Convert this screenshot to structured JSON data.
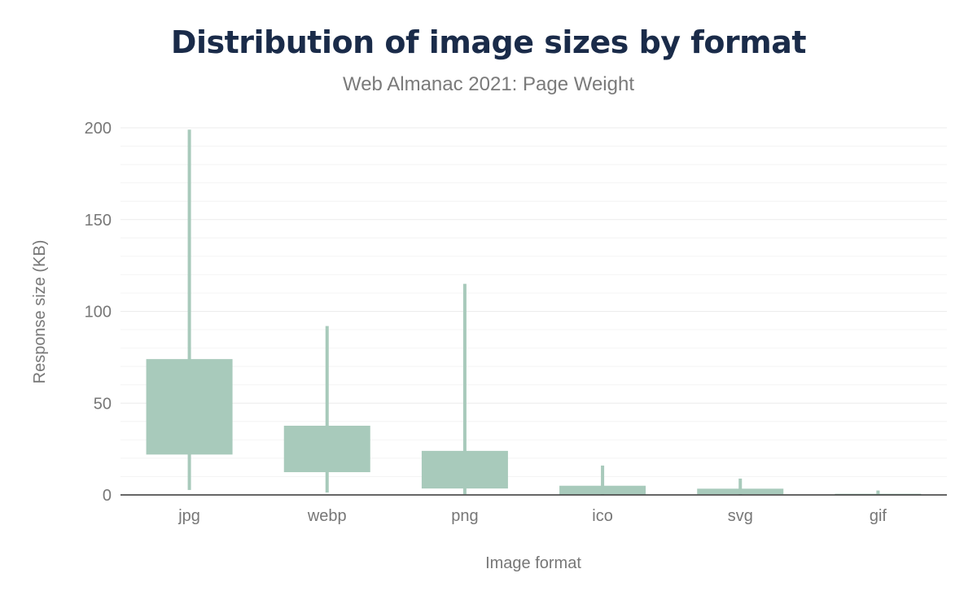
{
  "chart_data": {
    "type": "box",
    "title": "Distribution of image sizes by format",
    "subtitle": "Web Almanac 2021: Page Weight",
    "xlabel": "Image format",
    "ylabel": "Response size (KB)",
    "ylim": [
      0,
      200
    ],
    "yticks": [
      0,
      50,
      100,
      150,
      200
    ],
    "grid": true,
    "color": "#a8cabb",
    "categories": [
      "jpg",
      "webp",
      "png",
      "ico",
      "svg",
      "gif"
    ],
    "series": [
      {
        "low": [
          2.7,
          1.3,
          0.4,
          0.2,
          0.3,
          0.2
        ],
        "q1": [
          22,
          12.4,
          3.5,
          0.3,
          0.4,
          0.3
        ],
        "q3": [
          74,
          37.7,
          24,
          5,
          3.4,
          0.6
        ],
        "high": [
          199,
          92,
          115,
          16,
          8.9,
          2.4
        ]
      }
    ]
  }
}
